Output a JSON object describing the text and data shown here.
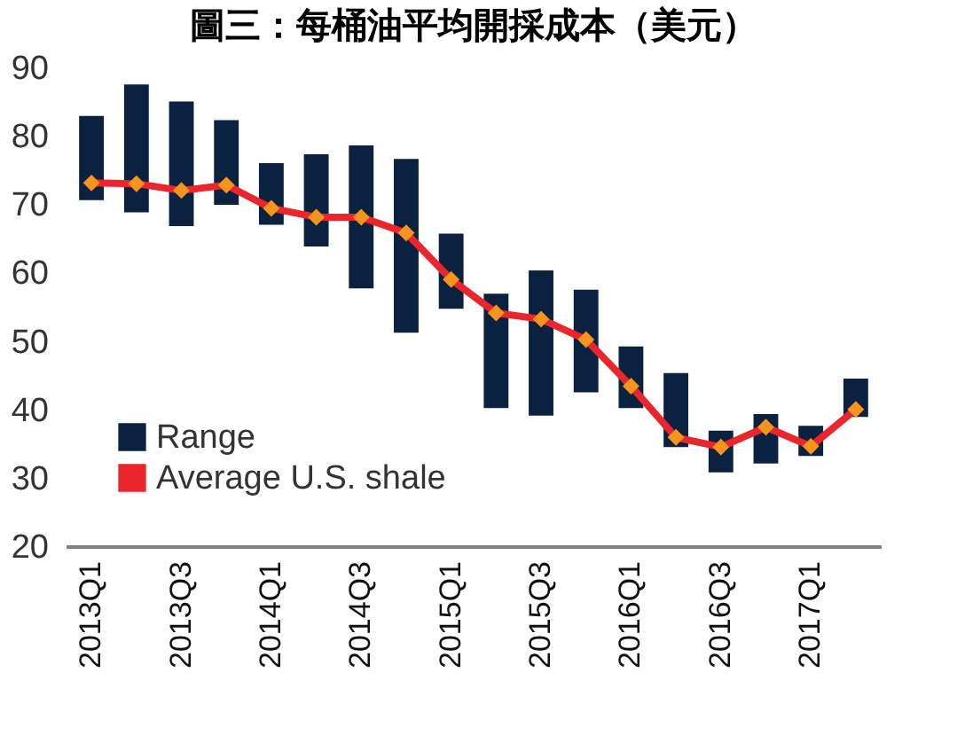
{
  "chart_data": {
    "type": "bar",
    "title": "圖三：每桶油平均開採成本（美元）",
    "categories": [
      "2013Q1",
      null,
      "2013Q3",
      null,
      "2014Q1",
      null,
      "2014Q3",
      null,
      "2015Q1",
      null,
      "2015Q3",
      null,
      "2016Q1",
      null,
      "2016Q3",
      null,
      "2017Q1",
      null
    ],
    "series": [
      {
        "name": "Range",
        "color": "#0a2240",
        "base": [
          70.6,
          68.8,
          66.8,
          69.9,
          67,
          63.8,
          57.7,
          51.2,
          54.7,
          40.2,
          39.1,
          42.5,
          40.2,
          34.5,
          30.8,
          32.1,
          33.2,
          38.9
        ],
        "values": [
          12.3,
          18.7,
          18.2,
          12.4,
          9,
          13.5,
          20.9,
          25.4,
          11,
          16.7,
          21.2,
          15,
          9,
          10.8,
          6.1,
          7.2,
          4.4,
          5.6
        ]
      },
      {
        "name": "Average U.S. shale",
        "type": "line",
        "color": "#e8262c",
        "marker": "diamond",
        "values": [
          73.1,
          73,
          72,
          72.8,
          69.4,
          68.1,
          68.1,
          65.8,
          59,
          54.1,
          53.2,
          50.2,
          43.4,
          35.9,
          34.5,
          37.4,
          34.6,
          40
        ]
      }
    ],
    "ylim": [
      20,
      90
    ],
    "yticks": [
      20,
      30,
      40,
      50,
      60,
      70,
      80,
      90
    ],
    "grid": false,
    "legend": "bottom left"
  }
}
